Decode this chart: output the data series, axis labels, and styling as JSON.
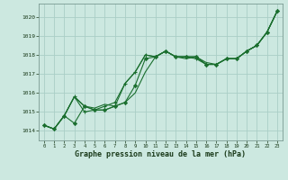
{
  "title": "Graphe pression niveau de la mer (hPa)",
  "background_color": "#cce8e0",
  "grid_color": "#aacec6",
  "line_color": "#1a6e2e",
  "xlim": [
    -0.5,
    23.5
  ],
  "ylim": [
    1013.5,
    1020.7
  ],
  "yticks": [
    1014,
    1015,
    1016,
    1017,
    1018,
    1019,
    1020
  ],
  "xticks": [
    0,
    1,
    2,
    3,
    4,
    5,
    6,
    7,
    8,
    9,
    10,
    11,
    12,
    13,
    14,
    15,
    16,
    17,
    18,
    19,
    20,
    21,
    22,
    23
  ],
  "series": [
    {
      "y": [
        1014.3,
        1014.1,
        1014.8,
        1015.8,
        1015.3,
        1015.1,
        1015.1,
        1015.3,
        1015.5,
        1016.0,
        1017.1,
        1017.9,
        1018.2,
        1017.9,
        1017.8,
        1017.9,
        1017.5,
        1017.5,
        1017.8,
        1017.8,
        1018.2,
        1018.5,
        1019.2,
        1020.3
      ],
      "marker": null,
      "lw": 0.8
    },
    {
      "y": [
        1014.3,
        1014.1,
        1014.8,
        1015.8,
        1015.3,
        1015.2,
        1015.4,
        1015.3,
        1016.5,
        1017.1,
        1018.0,
        1017.9,
        1018.2,
        1017.9,
        1017.9,
        1017.9,
        1017.6,
        1017.5,
        1017.8,
        1017.8,
        1018.2,
        1018.5,
        1019.2,
        1020.3
      ],
      "marker": null,
      "lw": 0.8
    },
    {
      "y": [
        1014.3,
        1014.1,
        1014.8,
        1015.8,
        1015.0,
        1015.1,
        1015.3,
        1015.5,
        1016.5,
        1017.1,
        1018.0,
        1017.9,
        1018.2,
        1017.9,
        1017.9,
        1017.8,
        1017.5,
        1017.5,
        1017.8,
        1017.8,
        1018.2,
        1018.5,
        1019.2,
        1020.3
      ],
      "marker": "+",
      "lw": 0.8
    },
    {
      "y": [
        1014.3,
        1014.1,
        1014.8,
        1014.4,
        1015.3,
        1015.1,
        1015.1,
        1015.3,
        1015.5,
        1016.4,
        1017.8,
        1017.9,
        1018.2,
        1017.9,
        1017.9,
        1017.9,
        1017.5,
        1017.5,
        1017.8,
        1017.8,
        1018.2,
        1018.5,
        1019.2,
        1020.3
      ],
      "marker": "D",
      "lw": 0.8
    }
  ]
}
